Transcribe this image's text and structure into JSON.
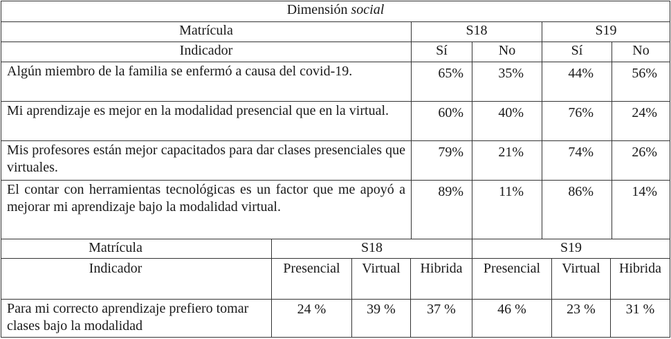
{
  "title": {
    "text": "Dimensión ",
    "italic": "social"
  },
  "part1": {
    "matricula_label": "Matrícula",
    "indicador_label": "Indicador",
    "groups": [
      "S18",
      "S19"
    ],
    "answers": [
      "Sí",
      "No",
      "Sí",
      "No"
    ],
    "rows": [
      {
        "indicator": "Algún miembro de la familia se enfermó a causa del covid-19.",
        "values": [
          "65%",
          "35%",
          "44%",
          "56%"
        ]
      },
      {
        "indicator": "Mi aprendizaje es mejor en la modalidad presencial que en la virtual.",
        "values": [
          "60%",
          "40%",
          "76%",
          "24%"
        ]
      },
      {
        "indicator": "Mis profesores están mejor capacitados para dar clases presenciales que virtuales.",
        "values": [
          "79%",
          "21%",
          "74%",
          "26%"
        ]
      },
      {
        "indicator": "El contar con herramientas tecnológicas es un factor que me apoyó a mejorar mi aprendizaje bajo la modalidad virtual.",
        "values": [
          "89%",
          "11%",
          "86%",
          "14%"
        ]
      }
    ]
  },
  "part2": {
    "matricula_label": "Matrícula",
    "indicador_label": "Indicador",
    "groups": [
      "S18",
      "S19"
    ],
    "modes": [
      "Presencial",
      "Virtual",
      "Hibrida",
      "Presencial",
      "Virtual",
      "Hibrida"
    ],
    "row": {
      "indicator": "Para mi correcto aprendizaje prefiero tomar clases bajo la modalidad",
      "values": [
        "24 %",
        "39 %",
        "37 %",
        "46 %",
        "23 %",
        "31 %"
      ]
    }
  }
}
